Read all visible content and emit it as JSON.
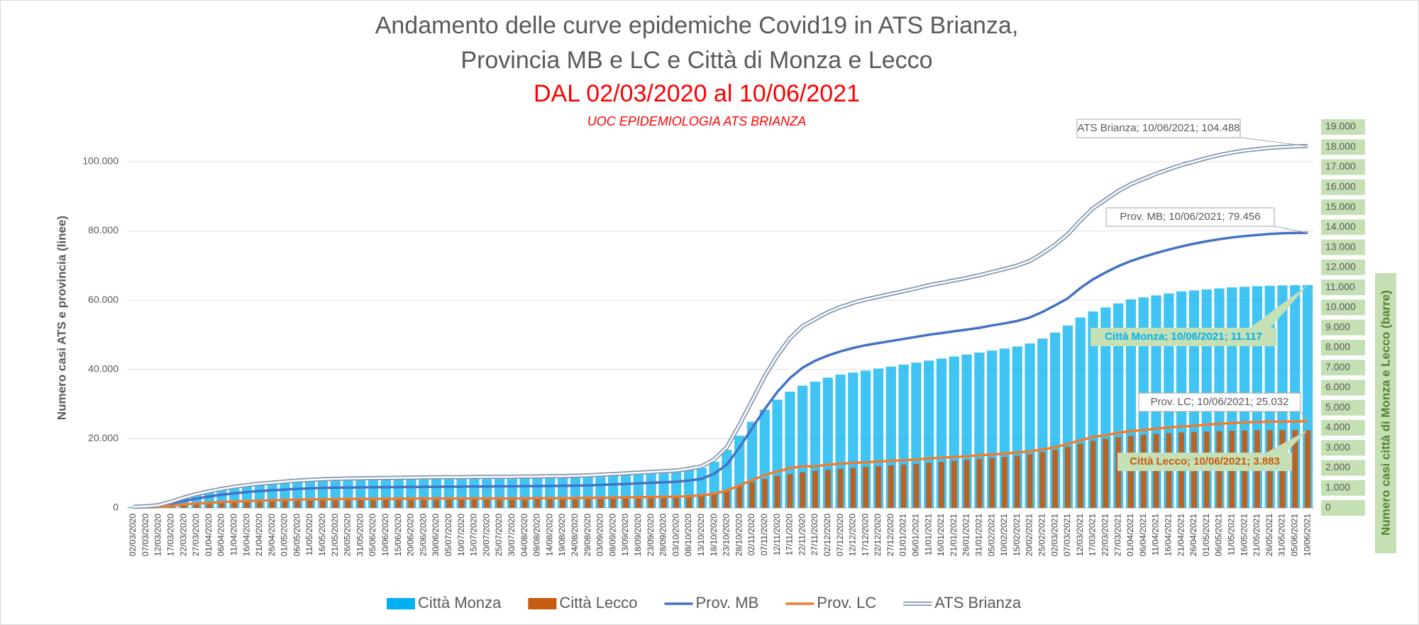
{
  "chart_data": {
    "type": "combo",
    "title": "Andamento delle curve epidemiche Covid19 in ATS Brianza,",
    "title_line2": "Provincia MB e LC e Città di Monza e Lecco",
    "subtitle": "DAL 02/03/2020 al 10/06/2021",
    "note": "UOC EPIDEMIOLOGIA ATS BRIANZA",
    "y_label": "Numero casi ATS e  provincia (linee)",
    "y2_label": "Numero casi città di Monza e Lecco (barre)",
    "ylim": [
      0,
      110000
    ],
    "yticks": [
      0,
      {
        "value": 20000,
        "label": "20.000"
      },
      {
        "value": 40000,
        "label": "40.000"
      },
      {
        "value": 60000,
        "label": "60.000"
      },
      {
        "value": 80000,
        "label": "80.000"
      },
      {
        "value": 100000,
        "label": "100.000"
      }
    ],
    "y2lim": [
      0,
      19000
    ],
    "y2ticks": [
      0,
      {
        "value": 1000,
        "label": "1.000"
      },
      {
        "value": 2000,
        "label": "2.000"
      },
      {
        "value": 3000,
        "label": "3.000"
      },
      {
        "value": 4000,
        "label": "4.000"
      },
      {
        "value": 5000,
        "label": "5.000"
      },
      {
        "value": 6000,
        "label": "6.000"
      },
      {
        "value": 7000,
        "label": "7.000"
      },
      {
        "value": 8000,
        "label": "8.000"
      },
      {
        "value": 9000,
        "label": "9.000"
      },
      {
        "value": 10000,
        "label": "10.000"
      },
      {
        "value": 11000,
        "label": "11.000"
      },
      {
        "value": 12000,
        "label": "12.000"
      },
      {
        "value": 13000,
        "label": "13.000"
      },
      {
        "value": 14000,
        "label": "14.000"
      },
      {
        "value": 15000,
        "label": "15.000"
      },
      {
        "value": 16000,
        "label": "16.000"
      },
      {
        "value": 17000,
        "label": "17.000"
      },
      {
        "value": 18000,
        "label": "18.000"
      },
      {
        "value": 19000,
        "label": "19.000"
      }
    ],
    "grid": true,
    "legend": "bottom",
    "categories": [
      "02/03/2020",
      "07/03/2020",
      "12/03/2020",
      "17/03/2020",
      "22/03/2020",
      "27/03/2020",
      "01/04/2020",
      "06/04/2020",
      "11/04/2020",
      "16/04/2020",
      "21/04/2020",
      "26/04/2020",
      "01/05/2020",
      "06/05/2020",
      "11/05/2020",
      "16/05/2020",
      "21/05/2020",
      "26/05/2020",
      "31/05/2020",
      "05/06/2020",
      "10/06/2020",
      "15/06/2020",
      "20/06/2020",
      "25/06/2020",
      "30/06/2020",
      "05/07/2020",
      "10/07/2020",
      "15/07/2020",
      "20/07/2020",
      "25/07/2020",
      "30/07/2020",
      "04/08/2020",
      "09/08/2020",
      "14/08/2020",
      "19/08/2020",
      "24/08/2020",
      "29/08/2020",
      "03/09/2020",
      "08/09/2020",
      "13/09/2020",
      "18/09/2020",
      "23/09/2020",
      "28/09/2020",
      "03/10/2020",
      "08/10/2020",
      "13/10/2020",
      "18/10/2020",
      "23/10/2020",
      "28/10/2020",
      "02/11/2020",
      "07/11/2020",
      "12/11/2020",
      "17/11/2020",
      "22/11/2020",
      "27/11/2020",
      "02/12/2020",
      "07/12/2020",
      "12/12/2020",
      "17/12/2020",
      "22/12/2020",
      "27/12/2020",
      "01/01/2021",
      "06/01/2021",
      "11/01/2021",
      "16/01/2021",
      "21/01/2021",
      "26/01/2021",
      "31/01/2021",
      "05/02/2021",
      "10/02/2021",
      "15/02/2021",
      "20/02/2021",
      "25/02/2021",
      "02/03/2021",
      "07/03/2021",
      "12/03/2021",
      "17/03/2021",
      "22/03/2021",
      "27/03/2021",
      "01/04/2021",
      "06/04/2021",
      "11/04/2021",
      "16/04/2021",
      "21/04/2021",
      "26/04/2021",
      "01/05/2021",
      "06/05/2021",
      "11/05/2021",
      "16/05/2021",
      "21/05/2021",
      "26/05/2021",
      "31/05/2021",
      "05/06/2021",
      "10/06/2021"
    ],
    "series": [
      {
        "name": "Città Monza",
        "type": "bar",
        "axis": "y2",
        "color": "#00b0f0",
        "values": [
          50,
          80,
          150,
          300,
          500,
          700,
          850,
          950,
          1050,
          1150,
          1200,
          1250,
          1300,
          1350,
          1380,
          1400,
          1420,
          1440,
          1450,
          1460,
          1470,
          1480,
          1490,
          1500,
          1510,
          1520,
          1520,
          1530,
          1530,
          1540,
          1540,
          1550,
          1560,
          1570,
          1580,
          1600,
          1620,
          1650,
          1680,
          1710,
          1740,
          1770,
          1800,
          1830,
          1900,
          2000,
          2300,
          2900,
          3600,
          4300,
          4900,
          5400,
          5800,
          6100,
          6300,
          6500,
          6650,
          6750,
          6850,
          6950,
          7050,
          7150,
          7250,
          7350,
          7450,
          7550,
          7650,
          7750,
          7850,
          7950,
          8050,
          8200,
          8450,
          8750,
          9100,
          9500,
          9800,
          10000,
          10200,
          10400,
          10500,
          10600,
          10700,
          10800,
          10850,
          10900,
          10950,
          11000,
          11030,
          11060,
          11080,
          11100,
          11110,
          11117
        ]
      },
      {
        "name": "Città Lecco",
        "type": "bar",
        "axis": "y2",
        "color": "#c55a11",
        "values": [
          10,
          20,
          40,
          80,
          150,
          220,
          280,
          330,
          370,
          400,
          420,
          440,
          450,
          460,
          470,
          480,
          485,
          490,
          495,
          500,
          500,
          505,
          505,
          510,
          510,
          510,
          515,
          515,
          515,
          520,
          520,
          520,
          525,
          525,
          530,
          535,
          540,
          550,
          560,
          570,
          580,
          590,
          600,
          610,
          640,
          680,
          760,
          900,
          1100,
          1300,
          1450,
          1600,
          1700,
          1780,
          1850,
          1900,
          1950,
          2000,
          2040,
          2080,
          2120,
          2160,
          2200,
          2250,
          2300,
          2350,
          2400,
          2450,
          2500,
          2550,
          2600,
          2680,
          2780,
          2900,
          3050,
          3200,
          3350,
          3450,
          3530,
          3600,
          3650,
          3700,
          3730,
          3760,
          3790,
          3810,
          3830,
          3850,
          3860,
          3870,
          3875,
          3880,
          3882,
          3883
        ]
      },
      {
        "name": "Prov. MB",
        "type": "line",
        "color": "#4472c4",
        "values": [
          200,
          350,
          550,
          1200,
          2000,
          2700,
          3300,
          3800,
          4200,
          4600,
          4900,
          5100,
          5300,
          5500,
          5650,
          5800,
          5850,
          5900,
          5950,
          6000,
          6000,
          6050,
          6050,
          6100,
          6100,
          6150,
          6150,
          6200,
          6200,
          6250,
          6250,
          6300,
          6300,
          6350,
          6400,
          6450,
          6500,
          6650,
          6800,
          6950,
          7100,
          7250,
          7400,
          7550,
          7900,
          8400,
          9900,
          12500,
          17500,
          23000,
          28500,
          33500,
          37500,
          40500,
          42500,
          44000,
          45200,
          46200,
          47000,
          47600,
          48200,
          48800,
          49400,
          50000,
          50500,
          51000,
          51500,
          52000,
          52700,
          53300,
          54000,
          55000,
          56600,
          58500,
          60500,
          63500,
          66000,
          68000,
          69800,
          71300,
          72500,
          73600,
          74600,
          75500,
          76300,
          77000,
          77600,
          78100,
          78500,
          78800,
          79100,
          79300,
          79400,
          79456
        ]
      },
      {
        "name": "Prov. LC",
        "type": "line",
        "color": "#ed7d31",
        "values": [
          100,
          150,
          250,
          600,
          1000,
          1300,
          1500,
          1700,
          1900,
          2000,
          2100,
          2200,
          2300,
          2400,
          2450,
          2500,
          2550,
          2600,
          2600,
          2600,
          2650,
          2650,
          2700,
          2700,
          2750,
          2750,
          2750,
          2750,
          2750,
          2750,
          2750,
          2750,
          2800,
          2800,
          2800,
          2850,
          2900,
          2950,
          3000,
          3050,
          3100,
          3150,
          3200,
          3250,
          3400,
          3600,
          4100,
          5000,
          6500,
          8000,
          9500,
          10500,
          11500,
          12000,
          12000,
          12500,
          12800,
          13000,
          13200,
          13400,
          13600,
          13800,
          14000,
          14300,
          14500,
          14700,
          14900,
          15200,
          15400,
          15700,
          16000,
          16300,
          16900,
          17500,
          18500,
          19500,
          20500,
          21000,
          21700,
          22200,
          22500,
          22900,
          23200,
          23500,
          23700,
          24000,
          24300,
          24500,
          24700,
          24800,
          24900,
          24900,
          25000,
          25032
        ]
      },
      {
        "name": "ATS Brianza",
        "type": "line",
        "line_style": "double",
        "color": "#8497b0",
        "values": [
          300,
          500,
          800,
          1800,
          3000,
          4000,
          4800,
          5500,
          6100,
          6600,
          7000,
          7300,
          7600,
          7900,
          8100,
          8300,
          8400,
          8500,
          8550,
          8600,
          8650,
          8700,
          8750,
          8800,
          8850,
          8900,
          8900,
          8950,
          8950,
          9000,
          9000,
          9050,
          9100,
          9150,
          9200,
          9300,
          9400,
          9600,
          9800,
          10000,
          10200,
          10400,
          10600,
          10800,
          11300,
          12000,
          14000,
          17500,
          24000,
          31000,
          38000,
          44000,
          49000,
          52500,
          54500,
          56500,
          58000,
          59200,
          60200,
          61000,
          61800,
          62600,
          63400,
          64300,
          65000,
          65700,
          66400,
          67200,
          68100,
          69000,
          70000,
          71300,
          73500,
          76000,
          79000,
          83000,
          86500,
          89000,
          91500,
          93500,
          95000,
          96500,
          97800,
          99000,
          100000,
          101000,
          101900,
          102600,
          103200,
          103600,
          104000,
          104200,
          104400,
          104488
        ]
      }
    ],
    "annotations": [
      "Città Monza; 10/06/2021; 11.117",
      "Città Lecco; 10/06/2021; 3.883",
      "Prov. MB; 10/06/2021; 79.456",
      "Prov. LC; 10/06/2021; 25.032",
      "ATS Brianza; 10/06/2021; 104.488"
    ]
  }
}
